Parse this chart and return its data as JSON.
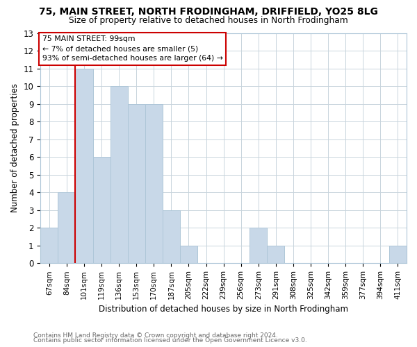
{
  "title": "75, MAIN STREET, NORTH FRODINGHAM, DRIFFIELD, YO25 8LG",
  "subtitle": "Size of property relative to detached houses in North Frodingham",
  "xlabel": "Distribution of detached houses by size in North Frodingham",
  "ylabel": "Number of detached properties",
  "bar_color": "#c8d8e8",
  "bar_edge_color": "#aec6d8",
  "highlight_color": "#cc0000",
  "background_color": "#ffffff",
  "grid_color": "#c8d4dc",
  "bins": [
    "67sqm",
    "84sqm",
    "101sqm",
    "119sqm",
    "136sqm",
    "153sqm",
    "170sqm",
    "187sqm",
    "205sqm",
    "222sqm",
    "239sqm",
    "256sqm",
    "273sqm",
    "291sqm",
    "308sqm",
    "325sqm",
    "342sqm",
    "359sqm",
    "377sqm",
    "394sqm",
    "411sqm"
  ],
  "counts": [
    2,
    4,
    11,
    6,
    10,
    9,
    9,
    3,
    1,
    0,
    0,
    0,
    2,
    1,
    0,
    0,
    0,
    0,
    0,
    0,
    1
  ],
  "highlight_bin_index": 2,
  "annotation_line1": "75 MAIN STREET: 99sqm",
  "annotation_line2": "← 7% of detached houses are smaller (5)",
  "annotation_line3": "93% of semi-detached houses are larger (64) →",
  "ylim": [
    0,
    13
  ],
  "yticks": [
    0,
    1,
    2,
    3,
    4,
    5,
    6,
    7,
    8,
    9,
    10,
    11,
    12,
    13
  ],
  "footer_line1": "Contains HM Land Registry data © Crown copyright and database right 2024.",
  "footer_line2": "Contains public sector information licensed under the Open Government Licence v3.0."
}
